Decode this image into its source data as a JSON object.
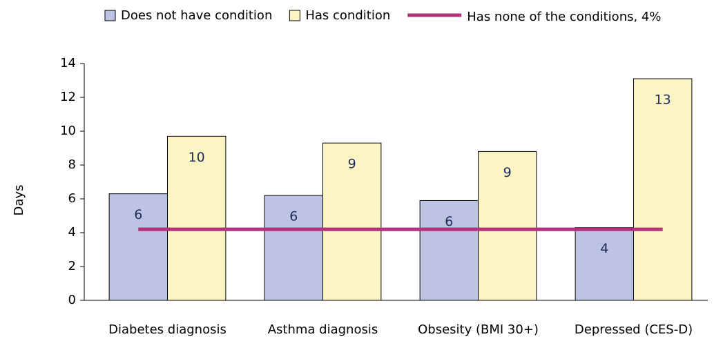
{
  "chart_data": {
    "type": "bar",
    "y_label": "Days",
    "categories": [
      "Diabetes diagnosis",
      "Asthma diagnosis",
      "Obsesity (BMI 30+)",
      "Depressed (CES-D)"
    ],
    "series": [
      {
        "name": "Does not have condition",
        "color": "#bcc3e3",
        "values": [
          6.3,
          6.2,
          5.9,
          4.3
        ],
        "value_labels": [
          "6",
          "6",
          "6",
          "4"
        ]
      },
      {
        "name": "Has condition",
        "color": "#fbf5c4",
        "values": [
          9.7,
          9.3,
          8.8,
          13.1
        ],
        "value_labels": [
          "10",
          "9",
          "9",
          "13"
        ]
      }
    ],
    "reference_line": {
      "name": "Has none of the conditions, 4%",
      "value": 4.2,
      "color": "#b0307a"
    },
    "ylim": [
      0,
      14
    ],
    "yticks": [
      0,
      2,
      4,
      6,
      8,
      10,
      12,
      14
    ],
    "grid": false
  }
}
